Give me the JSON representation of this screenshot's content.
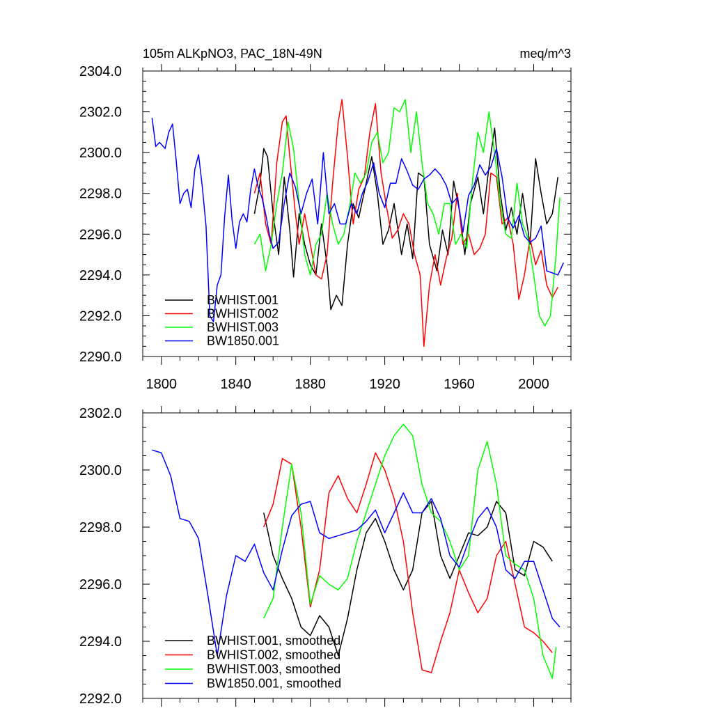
{
  "header": {
    "title_left": "105m ALKpNO3, PAC_18N-49N",
    "title_right": "meq/m^3"
  },
  "colors": {
    "BWHIST.001": "#000000",
    "BWHIST.002": "#ff0000",
    "BWHIST.003": "#00ff00",
    "BW1850.001": "#0000ff"
  },
  "chart_data": [
    {
      "type": "line",
      "title": "105m ALKpNO3, PAC_18N-49N",
      "units": "meq/m^3",
      "xlim": [
        1790,
        2020
      ],
      "ylim": [
        2290,
        2304
      ],
      "x_ticks": [
        1800,
        1840,
        1880,
        1920,
        1960,
        2000
      ],
      "x_tick_labels": [
        "1800",
        "1840",
        "1880",
        "1920",
        "1960",
        "2000"
      ],
      "y_ticks": [
        2290,
        2292,
        2294,
        2296,
        2298,
        2300,
        2302,
        2304
      ],
      "y_tick_labels": [
        "2290.0",
        "2292.0",
        "2294.0",
        "2296.0",
        "2298.0",
        "2300.0",
        "2302.0",
        "2304.0"
      ],
      "legend_position": "lower-left",
      "series": [
        {
          "name": "BWHIST.001",
          "color": "#000000",
          "x": [
            1850,
            1853,
            1855,
            1857,
            1860,
            1863,
            1866,
            1869,
            1871,
            1874,
            1877,
            1880,
            1883,
            1886,
            1889,
            1891,
            1894,
            1897,
            1900,
            1903,
            1906,
            1910,
            1913,
            1916,
            1919,
            1922,
            1925,
            1929,
            1932,
            1935,
            1938,
            1941,
            1944,
            1948,
            1951,
            1954,
            1957,
            1960,
            1963,
            1966,
            1970,
            1973,
            1976,
            1979,
            1982,
            1985,
            1988,
            1991,
            1994,
            1998,
            2001,
            2004,
            2007,
            2010,
            2013
          ],
          "y": [
            2297.0,
            2298.5,
            2300.2,
            2299.8,
            2297.0,
            2295.0,
            2298.8,
            2296.2,
            2293.9,
            2297.0,
            2295.5,
            2294.5,
            2294.0,
            2296.5,
            2294.5,
            2292.3,
            2293.0,
            2292.5,
            2295.5,
            2297.5,
            2296.8,
            2298.5,
            2299.8,
            2298.0,
            2295.5,
            2296.2,
            2297.5,
            2295.0,
            2296.5,
            2294.8,
            2299.0,
            2298.8,
            2295.5,
            2294.2,
            2296.2,
            2295.0,
            2298.6,
            2297.2,
            2295.0,
            2297.5,
            2298.8,
            2297.0,
            2299.3,
            2301.2,
            2298.0,
            2296.2,
            2297.3,
            2296.0,
            2298.0,
            2295.5,
            2299.7,
            2298.0,
            2296.5,
            2297.0,
            2298.8
          ]
        },
        {
          "name": "BWHIST.002",
          "color": "#ff0000",
          "x": [
            1850,
            1853,
            1856,
            1859,
            1862,
            1865,
            1867,
            1869,
            1872,
            1874,
            1877,
            1880,
            1883,
            1886,
            1889,
            1892,
            1895,
            1897,
            1900,
            1903,
            1906,
            1909,
            1912,
            1915,
            1918,
            1921,
            1924,
            1927,
            1930,
            1933,
            1936,
            1939,
            1941,
            1944,
            1947,
            1950,
            1953,
            1956,
            1959,
            1962,
            1965,
            1968,
            1971,
            1974,
            1977,
            1980,
            1983,
            1986,
            1989,
            1992,
            1995,
            1998,
            2001,
            2004,
            2007,
            2010,
            2013
          ],
          "y": [
            2298.0,
            2299.0,
            2296.5,
            2295.5,
            2299.5,
            2301.5,
            2301.8,
            2299.8,
            2297.0,
            2295.5,
            2297.0,
            2295.5,
            2294.0,
            2293.8,
            2295.0,
            2298.5,
            2301.5,
            2302.6,
            2299.8,
            2296.5,
            2298.2,
            2298.8,
            2301.0,
            2302.4,
            2299.0,
            2297.3,
            2295.8,
            2296.2,
            2297.0,
            2296.5,
            2295.0,
            2294.0,
            2290.5,
            2293.5,
            2295.0,
            2293.5,
            2294.8,
            2295.8,
            2298.0,
            2295.5,
            2296.0,
            2295.0,
            2295.3,
            2296.0,
            2299.0,
            2298.8,
            2296.5,
            2296.8,
            2295.5,
            2292.8,
            2294.0,
            2295.8,
            2294.5,
            2295.2,
            2293.5,
            2292.9,
            2293.4
          ]
        },
        {
          "name": "BWHIST.003",
          "color": "#00ff00",
          "x": [
            1850,
            1853,
            1856,
            1859,
            1862,
            1865,
            1868,
            1871,
            1874,
            1877,
            1880,
            1883,
            1886,
            1889,
            1892,
            1895,
            1898,
            1901,
            1904,
            1907,
            1910,
            1913,
            1916,
            1919,
            1922,
            1925,
            1928,
            1931,
            1934,
            1937,
            1940,
            1943,
            1946,
            1949,
            1952,
            1955,
            1958,
            1961,
            1964,
            1967,
            1970,
            1973,
            1976,
            1979,
            1982,
            1985,
            1988,
            1991,
            1994,
            1997,
            2000,
            2003,
            2006,
            2009,
            2012,
            2014
          ],
          "y": [
            2295.5,
            2296.0,
            2294.2,
            2295.5,
            2297.5,
            2299.0,
            2301.5,
            2300.2,
            2297.5,
            2295.0,
            2294.0,
            2295.5,
            2296.0,
            2298.0,
            2296.5,
            2295.5,
            2296.0,
            2297.3,
            2299.0,
            2298.5,
            2299.0,
            2300.5,
            2301.0,
            2299.5,
            2300.0,
            2302.2,
            2302.0,
            2302.6,
            2300.0,
            2302.0,
            2299.5,
            2297.5,
            2297.0,
            2296.0,
            2297.5,
            2297.5,
            2295.5,
            2296.0,
            2295.3,
            2298.5,
            2301.0,
            2300.0,
            2302.0,
            2300.0,
            2297.5,
            2296.0,
            2295.8,
            2298.5,
            2296.5,
            2295.8,
            2294.0,
            2292.0,
            2291.5,
            2292.0,
            2295.0,
            2297.8
          ]
        },
        {
          "name": "BW1850.001",
          "color": "#0000ff",
          "x": [
            1795,
            1797,
            1799,
            1802,
            1804,
            1806,
            1808,
            1810,
            1812,
            1814,
            1816,
            1818,
            1820,
            1822,
            1824,
            1826,
            1828,
            1830,
            1832,
            1834,
            1836,
            1838,
            1840,
            1842,
            1844,
            1846,
            1848,
            1850,
            1852,
            1854,
            1856,
            1858,
            1860,
            1863,
            1866,
            1869,
            1872,
            1875,
            1878,
            1881,
            1884,
            1887,
            1890,
            1893,
            1896,
            1899,
            1902,
            1905,
            1908,
            1911,
            1914,
            1917,
            1920,
            1923,
            1926,
            1929,
            1932,
            1935,
            1938,
            1941,
            1944,
            1947,
            1950,
            1953,
            1956,
            1959,
            1962,
            1965,
            1968,
            1971,
            1974,
            1977,
            1980,
            1983,
            1986,
            1989,
            1992,
            1995,
            1998,
            2001,
            2004,
            2007,
            2010,
            2013,
            2016
          ],
          "y": [
            2301.7,
            2300.3,
            2300.5,
            2300.2,
            2301.0,
            2301.4,
            2299.6,
            2297.5,
            2298.0,
            2298.2,
            2297.3,
            2299.2,
            2299.9,
            2298.3,
            2296.4,
            2292.0,
            2291.7,
            2293.5,
            2294.0,
            2296.9,
            2298.9,
            2296.7,
            2295.3,
            2296.6,
            2297.0,
            2296.6,
            2298.2,
            2299.2,
            2298.3,
            2297.8,
            2297.0,
            2296.0,
            2295.3,
            2295.6,
            2297.5,
            2299.0,
            2298.3,
            2297.0,
            2298.0,
            2298.7,
            2296.5,
            2300.0,
            2297.0,
            2297.5,
            2296.5,
            2296.5,
            2297.5,
            2297.0,
            2298.0,
            2298.6,
            2299.5,
            2298.0,
            2297.3,
            2298.5,
            2298.5,
            2299.7,
            2299.1,
            2298.4,
            2298.2,
            2298.7,
            2298.9,
            2299.2,
            2298.9,
            2298.4,
            2297.5,
            2297.8,
            2296.1,
            2297.9,
            2298.4,
            2299.4,
            2298.9,
            2299.3,
            2300.2,
            2298.8,
            2296.8,
            2296.3,
            2296.9,
            2295.9,
            2295.6,
            2295.8,
            2296.4,
            2294.2,
            2294.1,
            2294.0,
            2294.6
          ]
        }
      ]
    },
    {
      "type": "line",
      "xlim": [
        1790,
        2020
      ],
      "ylim": [
        2292,
        2302
      ],
      "x_ticks": [
        1800,
        1840,
        1880,
        1920,
        1960,
        2000
      ],
      "y_ticks": [
        2292,
        2294,
        2296,
        2298,
        2300,
        2302
      ],
      "y_tick_labels": [
        "2292.0",
        "2294.0",
        "2296.0",
        "2298.0",
        "2300.0",
        "2302.0"
      ],
      "legend_position": "lower-left",
      "series": [
        {
          "name": "BWHIST.001, smoothed",
          "color": "#000000",
          "x": [
            1855,
            1860,
            1865,
            1870,
            1875,
            1880,
            1885,
            1890,
            1895,
            1900,
            1905,
            1910,
            1915,
            1920,
            1925,
            1930,
            1935,
            1940,
            1945,
            1950,
            1955,
            1960,
            1965,
            1970,
            1975,
            1980,
            1985,
            1990,
            1995,
            2000,
            2005,
            2010
          ],
          "y": [
            2298.5,
            2297.0,
            2296.2,
            2295.5,
            2294.5,
            2294.2,
            2294.9,
            2294.5,
            2293.5,
            2294.8,
            2296.5,
            2297.8,
            2298.3,
            2297.5,
            2296.5,
            2295.8,
            2296.5,
            2298.5,
            2298.9,
            2297.0,
            2296.2,
            2297.0,
            2297.8,
            2297.7,
            2298.0,
            2298.9,
            2298.5,
            2296.5,
            2296.3,
            2297.5,
            2297.3,
            2296.8
          ]
        },
        {
          "name": "BWHIST.002, smoothed",
          "color": "#ff0000",
          "x": [
            1855,
            1860,
            1865,
            1870,
            1875,
            1880,
            1885,
            1890,
            1895,
            1900,
            1905,
            1910,
            1915,
            1920,
            1925,
            1930,
            1935,
            1940,
            1945,
            1950,
            1955,
            1960,
            1965,
            1970,
            1975,
            1980,
            1985,
            1990,
            1995,
            2000,
            2005,
            2010
          ],
          "y": [
            2298.0,
            2298.8,
            2300.4,
            2300.2,
            2298.0,
            2295.2,
            2296.5,
            2299.2,
            2299.8,
            2299.0,
            2298.5,
            2299.5,
            2300.6,
            2300.0,
            2299.0,
            2297.5,
            2295.0,
            2293.0,
            2292.9,
            2294.0,
            2295.0,
            2296.5,
            2295.7,
            2295.0,
            2295.5,
            2297.0,
            2297.5,
            2296.0,
            2294.5,
            2294.3,
            2294.0,
            2293.6
          ]
        },
        {
          "name": "BWHIST.003, smoothed",
          "color": "#00ff00",
          "x": [
            1855,
            1860,
            1865,
            1870,
            1875,
            1880,
            1885,
            1890,
            1895,
            1900,
            1905,
            1910,
            1915,
            1920,
            1925,
            1930,
            1935,
            1940,
            1945,
            1950,
            1955,
            1960,
            1965,
            1970,
            1975,
            1980,
            1985,
            1990,
            1995,
            2000,
            2005,
            2010,
            2012
          ],
          "y": [
            2294.8,
            2295.5,
            2298.0,
            2300.2,
            2298.5,
            2295.3,
            2296.3,
            2296.0,
            2295.8,
            2296.2,
            2297.5,
            2298.5,
            2299.5,
            2300.5,
            2301.2,
            2301.6,
            2301.2,
            2299.5,
            2298.5,
            2298.2,
            2297.5,
            2296.5,
            2297.0,
            2300.0,
            2301.0,
            2299.5,
            2297.0,
            2296.7,
            2296.5,
            2295.5,
            2293.5,
            2292.7,
            2293.8
          ]
        },
        {
          "name": "BW1850.001, smoothed",
          "color": "#0000ff",
          "x": [
            1795,
            1800,
            1805,
            1810,
            1815,
            1820,
            1825,
            1830,
            1835,
            1840,
            1845,
            1850,
            1855,
            1860,
            1865,
            1870,
            1875,
            1880,
            1885,
            1890,
            1895,
            1900,
            1905,
            1910,
            1915,
            1920,
            1925,
            1930,
            1935,
            1940,
            1945,
            1950,
            1955,
            1960,
            1965,
            1970,
            1975,
            1980,
            1985,
            1990,
            1995,
            2000,
            2005,
            2010,
            2014
          ],
          "y": [
            2300.7,
            2300.6,
            2299.8,
            2298.3,
            2298.2,
            2297.6,
            2295.6,
            2293.5,
            2295.6,
            2297.0,
            2296.8,
            2297.4,
            2296.4,
            2295.8,
            2297.2,
            2298.4,
            2298.8,
            2298.9,
            2297.8,
            2297.6,
            2297.7,
            2297.8,
            2297.9,
            2298.2,
            2298.6,
            2297.8,
            2298.5,
            2299.2,
            2298.5,
            2298.5,
            2299.0,
            2298.3,
            2297.0,
            2296.6,
            2297.5,
            2298.3,
            2298.7,
            2298.0,
            2296.5,
            2296.2,
            2296.8,
            2296.8,
            2295.8,
            2294.8,
            2294.5
          ]
        }
      ]
    }
  ]
}
